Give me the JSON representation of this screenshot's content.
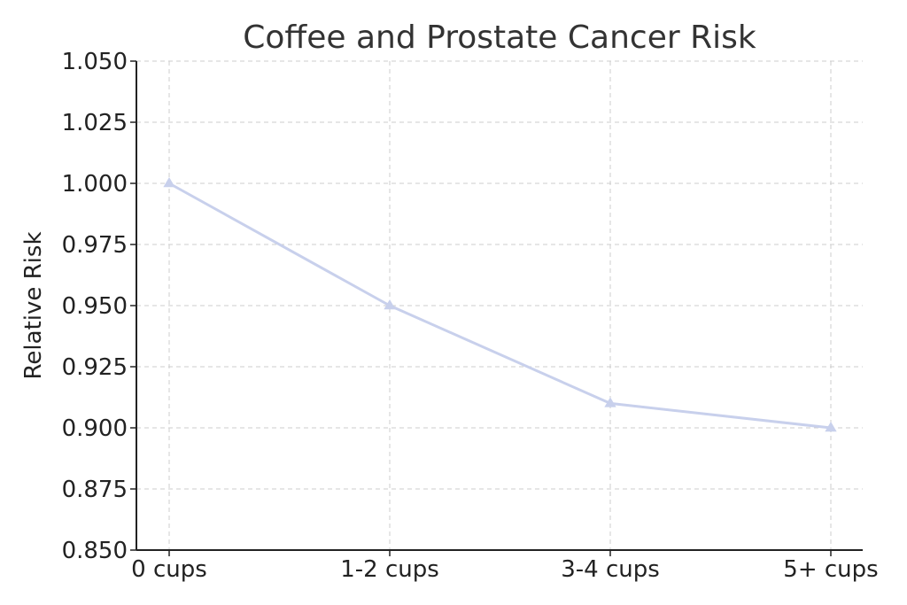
{
  "chart_data": {
    "type": "line",
    "title": "Coffee and Prostate Cancer Risk",
    "xlabel": "",
    "ylabel": "Relative Risk",
    "categories": [
      "0 cups",
      "1-2 cups",
      "3-4 cups",
      "5+ cups"
    ],
    "series": [
      {
        "name": "Relative Risk",
        "values": [
          1.0,
          0.95,
          0.91,
          0.9
        ],
        "marker": "triangle",
        "color": "#c8d0ec"
      }
    ],
    "ylim": [
      0.85,
      1.05
    ],
    "yticks": [
      0.85,
      0.875,
      0.9,
      0.925,
      0.95,
      0.975,
      1.0,
      1.025,
      1.05
    ],
    "ytick_labels": [
      "0.850",
      "0.875",
      "0.900",
      "0.925",
      "0.950",
      "0.975",
      "1.000",
      "1.025",
      "1.050"
    ],
    "grid": true,
    "legend": "none"
  },
  "colors": {
    "line": "#c8d0ec",
    "grid": "#cccccc",
    "axis": "#222222",
    "title": "#333333"
  }
}
